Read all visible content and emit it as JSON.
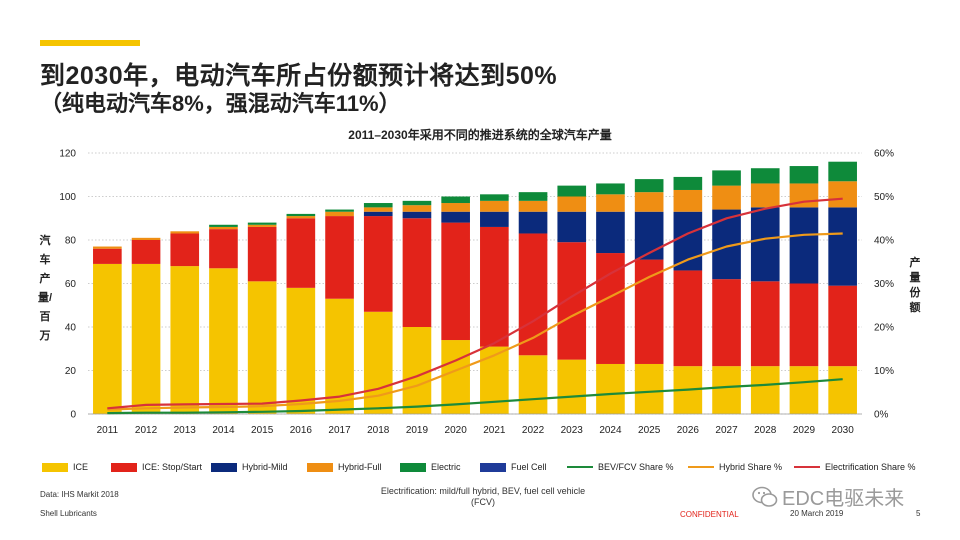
{
  "title": {
    "line1": "到2030年，电动汽车所占份额预计将达到50%",
    "line2": "（纯电动汽车8%，强混动汽车11%）"
  },
  "chart_data": {
    "type": "bar",
    "stacked": true,
    "title": "2011–2030年采用不同的推进系统的全球汽车产量",
    "ylabel": "汽车产量/百万",
    "y2label": "产量份额",
    "ylim": [
      0,
      120
    ],
    "y2lim": [
      0,
      60
    ],
    "yticks": [
      "0",
      "20",
      "40",
      "60",
      "80",
      "100",
      "120"
    ],
    "y2ticks": [
      "0%",
      "10%",
      "20%",
      "30%",
      "40%",
      "50%",
      "60%"
    ],
    "categories": [
      "2011",
      "2012",
      "2013",
      "2014",
      "2015",
      "2016",
      "2017",
      "2018",
      "2019",
      "2020",
      "2021",
      "2022",
      "2023",
      "2024",
      "2025",
      "2026",
      "2027",
      "2028",
      "2029",
      "2030"
    ],
    "series": [
      {
        "name": "ICE",
        "color": "#f5c400",
        "values": [
          69,
          69,
          68,
          67,
          61,
          58,
          53,
          47,
          40,
          34,
          31,
          27,
          25,
          23,
          23,
          22,
          22,
          22,
          22,
          22
        ]
      },
      {
        "name": "ICE: Stop/Start",
        "color": "#e2231a",
        "values": [
          7,
          11,
          15,
          18,
          25,
          32,
          38,
          44,
          50,
          54,
          55,
          56,
          54,
          51,
          48,
          44,
          40,
          39,
          38,
          37
        ]
      },
      {
        "name": "Hybrid-Mild",
        "color": "#0b2a7c",
        "values": [
          0,
          0,
          0,
          0,
          0,
          0,
          0,
          2,
          3,
          5,
          7,
          10,
          14,
          19,
          22,
          27,
          32,
          34,
          35,
          36
        ]
      },
      {
        "name": "Hybrid-Full",
        "color": "#ef8e13",
        "values": [
          1,
          1,
          1,
          1,
          1,
          1,
          2,
          2,
          3,
          4,
          5,
          5,
          7,
          8,
          9,
          10,
          11,
          11,
          11,
          12
        ]
      },
      {
        "name": "Electric",
        "color": "#0e8a3a",
        "values": [
          0,
          0,
          0,
          1,
          1,
          1,
          1,
          2,
          2,
          3,
          3,
          4,
          5,
          5,
          6,
          6,
          7,
          7,
          8,
          9
        ]
      },
      {
        "name": "Fuel Cell",
        "color": "#1f3b99",
        "values": [
          0,
          0,
          0,
          0,
          0,
          0,
          0,
          0,
          0,
          0,
          0,
          0,
          0,
          0,
          0,
          0,
          0,
          0,
          0,
          0
        ]
      }
    ],
    "lines": [
      {
        "name": "BEV/FCV Share %",
        "color": "#1d8a3a",
        "values": [
          0.2,
          0.3,
          0.3,
          0.4,
          0.5,
          0.7,
          1.0,
          1.3,
          1.7,
          2.2,
          2.8,
          3.4,
          4.0,
          4.6,
          5.1,
          5.6,
          6.2,
          6.7,
          7.3,
          8.0
        ]
      },
      {
        "name": "Hybrid Share %",
        "color": "#ef9a1a",
        "values": [
          1.0,
          1.3,
          1.5,
          1.6,
          1.8,
          2.3,
          3.0,
          4.2,
          6.5,
          10.0,
          13.5,
          17.5,
          22.5,
          27.0,
          31.5,
          35.5,
          38.5,
          40.3,
          41.2,
          41.5
        ]
      },
      {
        "name": "Electrification Share %",
        "color": "#d7323a",
        "values": [
          1.3,
          2.1,
          2.2,
          2.3,
          2.4,
          3.1,
          4.0,
          5.8,
          8.7,
          12.3,
          16.3,
          21.3,
          27.0,
          32.3,
          37.0,
          41.5,
          45.0,
          47.2,
          48.8,
          49.5
        ]
      }
    ]
  },
  "footer": {
    "source": "Data: IHS Markit 2018",
    "company": "Shell Lubricants",
    "note": "Electrification: mild/full hybrid, BEV, fuel cell vehicle (FCV)",
    "confidential": "CONFIDENTIAL",
    "date": "20 March 2019",
    "page": "5",
    "watermark": "EDC电驱未来"
  }
}
